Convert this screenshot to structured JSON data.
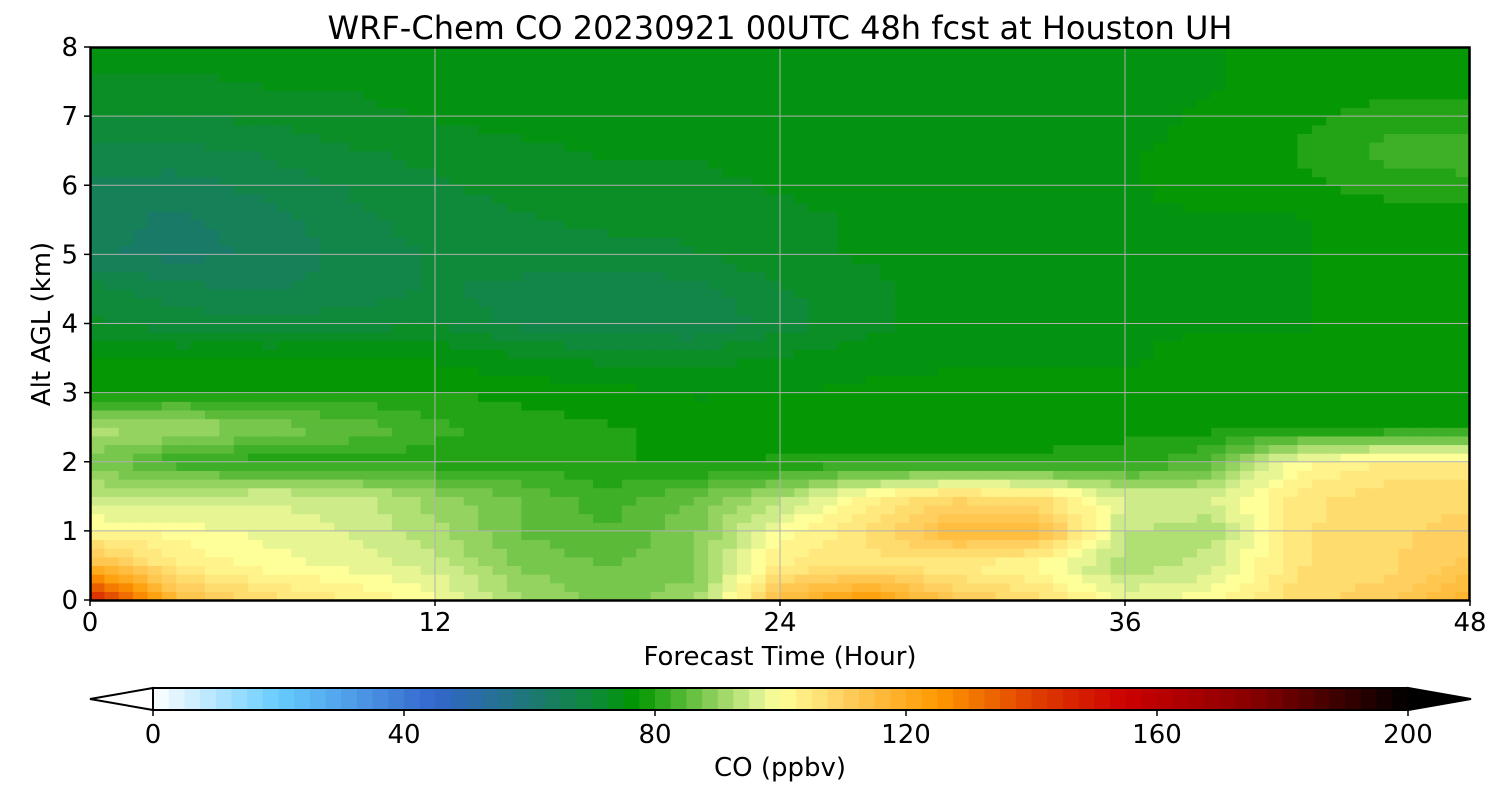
{
  "chart_data": {
    "type": "heatmap",
    "title": "WRF-Chem CO  20230921 00UTC 48h fcst at Houston UH",
    "xlabel": "Forecast Time (Hour)",
    "ylabel": "Alt AGL (km)",
    "xlim": [
      0,
      48
    ],
    "ylim": [
      0,
      8
    ],
    "x_ticks": [
      0,
      12,
      24,
      36,
      48
    ],
    "y_ticks": [
      0,
      1,
      2,
      3,
      4,
      5,
      6,
      7,
      8
    ],
    "grid": true,
    "x": [
      0,
      3,
      6,
      9,
      12,
      15,
      18,
      21,
      24,
      27,
      30,
      33,
      36,
      39,
      42,
      45,
      48
    ],
    "y": [
      0,
      0.5,
      1,
      1.5,
      2,
      2.5,
      3,
      3.5,
      4,
      4.5,
      5,
      5.5,
      6,
      6.5,
      7,
      7.5,
      8
    ],
    "z": [
      [
        150,
        115,
        108,
        104,
        100,
        92,
        88,
        90,
        115,
        125,
        112,
        108,
        98,
        100,
        108,
        110,
        118
      ],
      [
        116,
        104,
        100,
        98,
        95,
        88,
        86,
        88,
        104,
        106,
        104,
        100,
        92,
        95,
        106,
        108,
        112
      ],
      [
        102,
        100,
        98,
        96,
        92,
        86,
        84,
        88,
        100,
        106,
        116,
        116,
        94,
        92,
        106,
        108,
        110
      ],
      [
        94,
        94,
        96,
        95,
        90,
        86,
        82,
        86,
        92,
        102,
        108,
        106,
        96,
        96,
        105,
        108,
        108
      ],
      [
        88,
        82,
        80,
        80,
        80,
        80,
        79,
        78,
        79,
        79,
        79,
        79,
        80,
        84,
        100,
        104,
        104
      ],
      [
        92,
        92,
        88,
        86,
        82,
        80,
        79,
        78,
        78,
        78,
        78,
        78,
        78,
        78,
        78,
        78,
        78
      ],
      [
        78,
        79,
        79,
        79,
        79,
        78,
        77,
        76,
        76,
        77,
        77,
        77,
        77,
        77,
        77,
        77,
        77
      ],
      [
        76,
        76,
        76,
        76,
        76,
        74,
        73,
        73,
        74,
        75,
        76,
        76,
        76,
        77,
        77,
        77,
        77
      ],
      [
        72,
        70,
        70,
        70,
        71,
        68,
        67,
        66,
        70,
        73,
        75,
        76,
        76,
        76,
        76,
        77,
        77
      ],
      [
        70,
        67,
        66,
        67,
        69,
        68,
        67,
        68,
        71,
        73,
        75,
        76,
        76,
        76,
        76,
        77,
        77
      ],
      [
        64,
        63,
        64,
        67,
        69,
        70,
        70,
        71,
        73,
        74,
        75,
        76,
        76,
        76,
        76,
        77,
        77
      ],
      [
        65,
        63,
        65,
        68,
        70,
        71,
        72,
        72,
        73,
        74,
        75,
        76,
        76,
        76,
        76,
        77,
        77
      ],
      [
        66,
        65,
        67,
        69,
        71,
        72,
        73,
        73,
        74,
        75,
        76,
        76,
        76,
        77,
        78,
        80,
        81
      ],
      [
        68,
        68,
        69,
        71,
        72,
        73,
        74,
        74,
        75,
        76,
        76,
        76,
        76,
        77,
        79,
        82,
        82
      ],
      [
        71,
        71,
        72,
        73,
        74,
        75,
        75,
        75,
        75,
        76,
        76,
        76,
        75,
        77,
        78,
        80,
        80
      ],
      [
        73,
        73,
        74,
        74,
        75,
        75,
        76,
        76,
        76,
        76,
        76,
        75,
        74,
        76,
        77,
        77,
        78
      ],
      [
        75,
        75,
        75,
        75,
        75,
        76,
        76,
        76,
        76,
        76,
        76,
        75,
        74,
        76,
        77,
        77,
        77
      ]
    ],
    "colorbar": {
      "label": "CO  (ppbv)",
      "min": 0,
      "max": 200,
      "ticks": [
        0,
        40,
        80,
        120,
        160,
        200
      ],
      "extend": "both",
      "stops": [
        {
          "v": 0,
          "c": "#ffffff"
        },
        {
          "v": 20,
          "c": "#66ccff"
        },
        {
          "v": 45,
          "c": "#3366cc"
        },
        {
          "v": 62,
          "c": "#1a7a6a"
        },
        {
          "v": 70,
          "c": "#0f8a3a"
        },
        {
          "v": 77,
          "c": "#009600"
        },
        {
          "v": 86,
          "c": "#66c040"
        },
        {
          "v": 96,
          "c": "#d8f090"
        },
        {
          "v": 100,
          "c": "#ffff99"
        },
        {
          "v": 110,
          "c": "#ffd060"
        },
        {
          "v": 125,
          "c": "#ff9900"
        },
        {
          "v": 140,
          "c": "#e04000"
        },
        {
          "v": 155,
          "c": "#cc0000"
        },
        {
          "v": 175,
          "c": "#880000"
        },
        {
          "v": 200,
          "c": "#000000"
        }
      ]
    }
  }
}
